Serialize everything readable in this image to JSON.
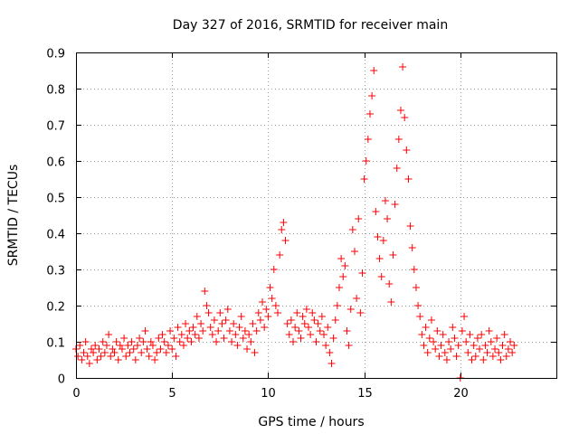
{
  "chart_data": {
    "type": "scatter",
    "title": "Day 327 of 2016, SRMTID for receiver main",
    "xlabel": "GPS time / hours",
    "ylabel": "SRMTID / TECUs",
    "xlim": [
      0,
      25
    ],
    "ylim": [
      0,
      0.9
    ],
    "xticks": [
      0,
      5,
      10,
      15,
      20
    ],
    "xtick_labels": [
      "0",
      "5",
      "10",
      "15",
      "20"
    ],
    "yticks": [
      0,
      0.1,
      0.2,
      0.3,
      0.4,
      0.5,
      0.6,
      0.7,
      0.8,
      0.9
    ],
    "ytick_labels": [
      "0",
      "0.1",
      "0.2",
      "0.3",
      "0.4",
      "0.5",
      "0.6",
      "0.7",
      "0.8",
      "0.9"
    ],
    "grid": true,
    "marker": "plus",
    "marker_color": "#ff0000",
    "series": [
      {
        "name": "SRMTID",
        "points": [
          [
            0.0,
            0.08
          ],
          [
            0.1,
            0.06
          ],
          [
            0.2,
            0.09
          ],
          [
            0.3,
            0.05
          ],
          [
            0.4,
            0.07
          ],
          [
            0.5,
            0.1
          ],
          [
            0.6,
            0.06
          ],
          [
            0.7,
            0.04
          ],
          [
            0.8,
            0.08
          ],
          [
            0.9,
            0.07
          ],
          [
            1.0,
            0.09
          ],
          [
            1.1,
            0.05
          ],
          [
            1.2,
            0.08
          ],
          [
            1.3,
            0.06
          ],
          [
            1.4,
            0.1
          ],
          [
            1.5,
            0.07
          ],
          [
            1.6,
            0.09
          ],
          [
            1.7,
            0.12
          ],
          [
            1.8,
            0.06
          ],
          [
            1.9,
            0.08
          ],
          [
            2.0,
            0.07
          ],
          [
            2.1,
            0.1
          ],
          [
            2.2,
            0.05
          ],
          [
            2.3,
            0.09
          ],
          [
            2.4,
            0.08
          ],
          [
            2.5,
            0.11
          ],
          [
            2.6,
            0.06
          ],
          [
            2.7,
            0.09
          ],
          [
            2.8,
            0.07
          ],
          [
            2.9,
            0.1
          ],
          [
            3.0,
            0.08
          ],
          [
            3.1,
            0.05
          ],
          [
            3.2,
            0.09
          ],
          [
            3.3,
            0.11
          ],
          [
            3.4,
            0.07
          ],
          [
            3.5,
            0.1
          ],
          [
            3.6,
            0.13
          ],
          [
            3.7,
            0.08
          ],
          [
            3.8,
            0.06
          ],
          [
            3.9,
            0.1
          ],
          [
            4.0,
            0.09
          ],
          [
            4.1,
            0.05
          ],
          [
            4.2,
            0.07
          ],
          [
            4.3,
            0.11
          ],
          [
            4.4,
            0.08
          ],
          [
            4.5,
            0.12
          ],
          [
            4.6,
            0.1
          ],
          [
            4.7,
            0.07
          ],
          [
            4.8,
            0.09
          ],
          [
            4.9,
            0.13
          ],
          [
            5.0,
            0.08
          ],
          [
            5.1,
            0.11
          ],
          [
            5.2,
            0.06
          ],
          [
            5.3,
            0.14
          ],
          [
            5.4,
            0.1
          ],
          [
            5.5,
            0.12
          ],
          [
            5.6,
            0.09
          ],
          [
            5.7,
            0.15
          ],
          [
            5.8,
            0.11
          ],
          [
            5.9,
            0.13
          ],
          [
            6.0,
            0.1
          ],
          [
            6.1,
            0.14
          ],
          [
            6.2,
            0.12
          ],
          [
            6.3,
            0.17
          ],
          [
            6.4,
            0.11
          ],
          [
            6.5,
            0.15
          ],
          [
            6.6,
            0.13
          ],
          [
            6.7,
            0.24
          ],
          [
            6.8,
            0.2
          ],
          [
            6.9,
            0.18
          ],
          [
            7.0,
            0.14
          ],
          [
            7.1,
            0.12
          ],
          [
            7.2,
            0.16
          ],
          [
            7.3,
            0.1
          ],
          [
            7.4,
            0.13
          ],
          [
            7.5,
            0.18
          ],
          [
            7.6,
            0.15
          ],
          [
            7.7,
            0.11
          ],
          [
            7.8,
            0.16
          ],
          [
            7.9,
            0.19
          ],
          [
            8.0,
            0.13
          ],
          [
            8.1,
            0.1
          ],
          [
            8.2,
            0.15
          ],
          [
            8.3,
            0.12
          ],
          [
            8.4,
            0.09
          ],
          [
            8.5,
            0.14
          ],
          [
            8.6,
            0.17
          ],
          [
            8.7,
            0.11
          ],
          [
            8.8,
            0.13
          ],
          [
            8.9,
            0.08
          ],
          [
            9.0,
            0.12
          ],
          [
            9.1,
            0.1
          ],
          [
            9.2,
            0.15
          ],
          [
            9.3,
            0.07
          ],
          [
            9.4,
            0.13
          ],
          [
            9.5,
            0.18
          ],
          [
            9.6,
            0.16
          ],
          [
            9.7,
            0.21
          ],
          [
            9.8,
            0.14
          ],
          [
            9.9,
            0.19
          ],
          [
            10.0,
            0.17
          ],
          [
            10.1,
            0.25
          ],
          [
            10.2,
            0.22
          ],
          [
            10.3,
            0.3
          ],
          [
            10.4,
            0.2
          ],
          [
            10.5,
            0.18
          ],
          [
            10.6,
            0.34
          ],
          [
            10.7,
            0.41
          ],
          [
            10.8,
            0.43
          ],
          [
            10.9,
            0.38
          ],
          [
            11.0,
            0.15
          ],
          [
            11.1,
            0.12
          ],
          [
            11.2,
            0.16
          ],
          [
            11.3,
            0.1
          ],
          [
            11.4,
            0.14
          ],
          [
            11.5,
            0.18
          ],
          [
            11.6,
            0.13
          ],
          [
            11.7,
            0.11
          ],
          [
            11.8,
            0.17
          ],
          [
            11.9,
            0.15
          ],
          [
            12.0,
            0.19
          ],
          [
            12.1,
            0.14
          ],
          [
            12.2,
            0.12
          ],
          [
            12.3,
            0.18
          ],
          [
            12.4,
            0.16
          ],
          [
            12.5,
            0.1
          ],
          [
            12.6,
            0.15
          ],
          [
            12.7,
            0.13
          ],
          [
            12.8,
            0.17
          ],
          [
            12.9,
            0.12
          ],
          [
            13.0,
            0.09
          ],
          [
            13.1,
            0.14
          ],
          [
            13.2,
            0.07
          ],
          [
            13.3,
            0.04
          ],
          [
            13.4,
            0.11
          ],
          [
            13.5,
            0.16
          ],
          [
            13.6,
            0.2
          ],
          [
            13.7,
            0.25
          ],
          [
            13.8,
            0.33
          ],
          [
            13.9,
            0.28
          ],
          [
            14.0,
            0.31
          ],
          [
            14.1,
            0.13
          ],
          [
            14.2,
            0.09
          ],
          [
            14.3,
            0.19
          ],
          [
            14.4,
            0.41
          ],
          [
            14.5,
            0.35
          ],
          [
            14.6,
            0.22
          ],
          [
            14.7,
            0.44
          ],
          [
            14.8,
            0.18
          ],
          [
            14.9,
            0.29
          ],
          [
            15.0,
            0.55
          ],
          [
            15.1,
            0.6
          ],
          [
            15.2,
            0.66
          ],
          [
            15.3,
            0.73
          ],
          [
            15.4,
            0.78
          ],
          [
            15.5,
            0.85
          ],
          [
            15.6,
            0.46
          ],
          [
            15.7,
            0.39
          ],
          [
            15.8,
            0.33
          ],
          [
            15.9,
            0.28
          ],
          [
            16.0,
            0.38
          ],
          [
            16.1,
            0.49
          ],
          [
            16.2,
            0.44
          ],
          [
            16.3,
            0.26
          ],
          [
            16.4,
            0.21
          ],
          [
            16.5,
            0.34
          ],
          [
            16.6,
            0.48
          ],
          [
            16.7,
            0.58
          ],
          [
            16.8,
            0.66
          ],
          [
            16.9,
            0.74
          ],
          [
            17.0,
            0.86
          ],
          [
            17.1,
            0.72
          ],
          [
            17.2,
            0.63
          ],
          [
            17.3,
            0.55
          ],
          [
            17.4,
            0.42
          ],
          [
            17.5,
            0.36
          ],
          [
            17.6,
            0.3
          ],
          [
            17.7,
            0.25
          ],
          [
            17.8,
            0.2
          ],
          [
            17.9,
            0.17
          ],
          [
            18.0,
            0.12
          ],
          [
            18.1,
            0.09
          ],
          [
            18.2,
            0.14
          ],
          [
            18.3,
            0.07
          ],
          [
            18.4,
            0.11
          ],
          [
            18.5,
            0.16
          ],
          [
            18.6,
            0.1
          ],
          [
            18.7,
            0.08
          ],
          [
            18.8,
            0.13
          ],
          [
            18.9,
            0.06
          ],
          [
            19.0,
            0.09
          ],
          [
            19.1,
            0.12
          ],
          [
            19.2,
            0.07
          ],
          [
            19.3,
            0.05
          ],
          [
            19.4,
            0.1
          ],
          [
            19.5,
            0.08
          ],
          [
            19.6,
            0.14
          ],
          [
            19.7,
            0.11
          ],
          [
            19.8,
            0.06
          ],
          [
            19.9,
            0.09
          ],
          [
            20.0,
            0.0
          ],
          [
            20.1,
            0.13
          ],
          [
            20.2,
            0.17
          ],
          [
            20.3,
            0.1
          ],
          [
            20.4,
            0.07
          ],
          [
            20.5,
            0.12
          ],
          [
            20.6,
            0.05
          ],
          [
            20.7,
            0.09
          ],
          [
            20.8,
            0.06
          ],
          [
            20.9,
            0.11
          ],
          [
            21.0,
            0.08
          ],
          [
            21.1,
            0.12
          ],
          [
            21.2,
            0.05
          ],
          [
            21.3,
            0.09
          ],
          [
            21.4,
            0.07
          ],
          [
            21.5,
            0.13
          ],
          [
            21.6,
            0.1
          ],
          [
            21.7,
            0.06
          ],
          [
            21.8,
            0.08
          ],
          [
            21.9,
            0.11
          ],
          [
            22.0,
            0.07
          ],
          [
            22.1,
            0.05
          ],
          [
            22.2,
            0.09
          ],
          [
            22.3,
            0.12
          ],
          [
            22.4,
            0.06
          ],
          [
            22.5,
            0.08
          ],
          [
            22.6,
            0.1
          ],
          [
            22.7,
            0.07
          ],
          [
            22.8,
            0.09
          ]
        ]
      }
    ]
  }
}
